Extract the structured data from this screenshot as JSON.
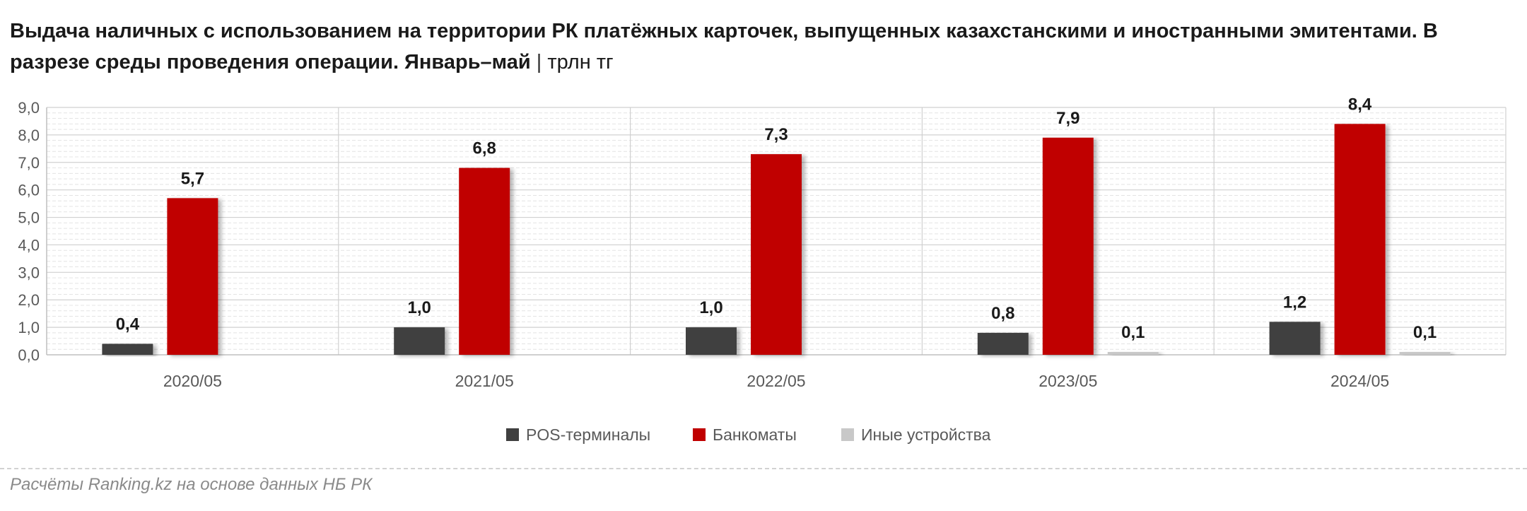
{
  "title": {
    "main": "Выдача наличных с использованием на территории РК платёжных карточек, выпущенных казахстанскими и иностранными эмитентами. В разрезе среды проведения операции. Январь–май",
    "separator": "|",
    "unit": "трлн тг"
  },
  "source": "Расчёты Ranking.kz на основе данных НБ РК",
  "colors": {
    "pos": "#404040",
    "atm": "#c00000",
    "other": "#c8c8c8",
    "text": "#1a1a1a",
    "axis_text": "#595959"
  },
  "chart_data": {
    "type": "bar",
    "categories": [
      "2020/05",
      "2021/05",
      "2022/05",
      "2023/05",
      "2024/05"
    ],
    "series": [
      {
        "name": "POS-терминалы",
        "values": [
          0.4,
          1.0,
          1.0,
          0.8,
          1.2
        ],
        "labels": [
          "0,4",
          "1,0",
          "1,0",
          "0,8",
          "1,2"
        ]
      },
      {
        "name": "Банкоматы",
        "values": [
          5.7,
          6.8,
          7.3,
          7.9,
          8.4
        ],
        "labels": [
          "5,7",
          "6,8",
          "7,3",
          "7,9",
          "8,4"
        ]
      },
      {
        "name": "Иные устройства",
        "values": [
          0.0,
          0.0,
          0.0,
          0.1,
          0.1
        ],
        "labels": [
          "",
          "",
          "",
          "0,1",
          "0,1"
        ]
      }
    ],
    "ylim": [
      0,
      9
    ],
    "yticks": [
      "0,0",
      "1,0",
      "2,0",
      "3,0",
      "4,0",
      "5,0",
      "6,0",
      "7,0",
      "8,0",
      "9,0"
    ],
    "grid": true,
    "legend": "bottom"
  }
}
